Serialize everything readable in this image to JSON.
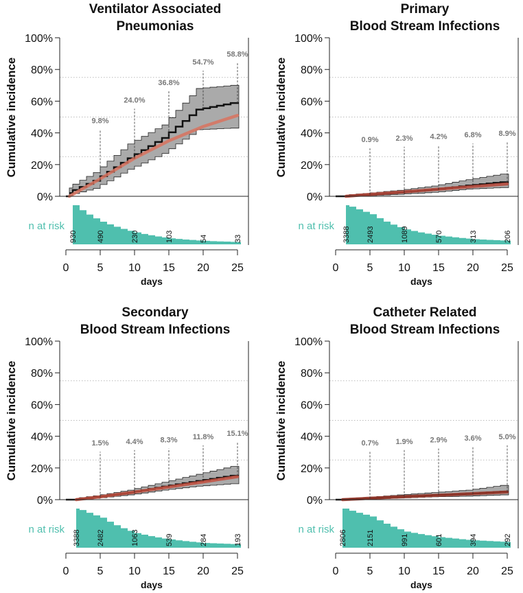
{
  "chart_data": [
    {
      "type": "line",
      "title": [
        "Ventilator Associated",
        "Pneumonias"
      ],
      "ylabel": "Cumulative incidence",
      "xlabel": "days",
      "ylim": [
        0,
        100
      ],
      "xlim": [
        0,
        25
      ],
      "yticks": [
        "0%",
        "20%",
        "40%",
        "60%",
        "80%",
        "100%"
      ],
      "xticks": [
        "0",
        "5",
        "10",
        "15",
        "20",
        "25"
      ],
      "risk_label": "n at risk",
      "marked_days": [
        5,
        10,
        15,
        20,
        25
      ],
      "marked_labels": [
        "9.8%",
        "24.0%",
        "36.8%",
        "54.7%",
        "58.8%"
      ],
      "risk_days": [
        1,
        5,
        10,
        15,
        20,
        25
      ],
      "n_at_risk": [
        "930",
        "490",
        "230",
        "103",
        "54",
        "33"
      ],
      "curve_days": [
        0.5,
        5,
        10,
        15,
        20,
        25
      ],
      "estimate": [
        1,
        9.8,
        24.0,
        36.8,
        54.7,
        58.8
      ],
      "ci_lower": [
        0,
        5,
        17,
        27,
        42,
        43
      ],
      "ci_upper": [
        4,
        15,
        33,
        45,
        68,
        70
      ],
      "fit": [
        0,
        11,
        24,
        35,
        44,
        51
      ],
      "fit_color": "#d9735f"
    },
    {
      "type": "line",
      "title": [
        "Primary",
        "Blood Stream Infections"
      ],
      "ylabel": "Cumulative incidence",
      "xlabel": "days",
      "ylim": [
        0,
        100
      ],
      "xlim": [
        0,
        25
      ],
      "yticks": [
        "0%",
        "20%",
        "40%",
        "60%",
        "80%",
        "100%"
      ],
      "xticks": [
        "0",
        "5",
        "10",
        "15",
        "20",
        "25"
      ],
      "risk_label": "n at risk",
      "marked_days": [
        5,
        10,
        15,
        20,
        25
      ],
      "marked_labels": [
        "0.9%",
        "2.3%",
        "4.2%",
        "6.8%",
        "8.9%"
      ],
      "risk_days": [
        1.5,
        5,
        10,
        15,
        20,
        25
      ],
      "n_at_risk": [
        "3388",
        "2493",
        "1089",
        "570",
        "313",
        "206"
      ],
      "curve_days": [
        1.5,
        5,
        10,
        15,
        20,
        25
      ],
      "estimate": [
        0,
        0.9,
        2.3,
        4.2,
        6.8,
        8.9
      ],
      "ci_lower": [
        0,
        0.3,
        1.2,
        2.5,
        4.5,
        5.5
      ],
      "ci_upper": [
        0.5,
        1.8,
        3.8,
        6.5,
        10.5,
        14
      ],
      "fit": [
        0,
        1.2,
        2.8,
        4.5,
        6.2,
        7.8
      ],
      "fit_color": "#b9483a"
    },
    {
      "type": "line",
      "title": [
        "Secondary",
        "Blood Stream Infections"
      ],
      "ylabel": "Cumulative incidence",
      "xlabel": "days",
      "ylim": [
        0,
        100
      ],
      "xlim": [
        0,
        25
      ],
      "yticks": [
        "0%",
        "20%",
        "40%",
        "60%",
        "80%",
        "100%"
      ],
      "xticks": [
        "0",
        "5",
        "10",
        "15",
        "20",
        "25"
      ],
      "risk_label": "n at risk",
      "marked_days": [
        5,
        10,
        15,
        20,
        25
      ],
      "marked_labels": [
        "1.5%",
        "4.4%",
        "8.3%",
        "11.8%",
        "15.1%"
      ],
      "risk_days": [
        1.5,
        5,
        10,
        15,
        20,
        25
      ],
      "n_at_risk": [
        "3388",
        "2482",
        "1063",
        "539",
        "284",
        "193"
      ],
      "curve_days": [
        1.5,
        5,
        10,
        15,
        20,
        25
      ],
      "estimate": [
        0,
        1.5,
        4.4,
        8.3,
        11.8,
        15.1
      ],
      "ci_lower": [
        0,
        0.8,
        3.0,
        6.0,
        8.5,
        10
      ],
      "ci_upper": [
        0.5,
        2.4,
        6.0,
        11,
        16,
        21
      ],
      "fit": [
        0,
        1.8,
        4.8,
        8.0,
        11.2,
        14.5
      ],
      "fit_color": "#c4503f"
    },
    {
      "type": "line",
      "title": [
        "Catheter Related",
        "Blood Stream Infections"
      ],
      "ylabel": "Cumulative incidence",
      "xlabel": "days",
      "ylim": [
        0,
        100
      ],
      "xlim": [
        0,
        25
      ],
      "yticks": [
        "0%",
        "20%",
        "40%",
        "60%",
        "80%",
        "100%"
      ],
      "xticks": [
        "0",
        "5",
        "10",
        "15",
        "20",
        "25"
      ],
      "risk_label": "n at risk",
      "marked_days": [
        5,
        10,
        15,
        20,
        25
      ],
      "marked_labels": [
        "0.7%",
        "1.9%",
        "2.9%",
        "3.6%",
        "5.0%"
      ],
      "risk_days": [
        1,
        5,
        10,
        15,
        20,
        25
      ],
      "n_at_risk": [
        "2806",
        "2151",
        "991",
        "601",
        "394",
        "292"
      ],
      "curve_days": [
        1,
        5,
        10,
        15,
        20,
        25
      ],
      "estimate": [
        0,
        0.7,
        1.9,
        2.9,
        3.6,
        5.0
      ],
      "ci_lower": [
        0,
        0.3,
        1.0,
        1.8,
        2.2,
        3.0
      ],
      "ci_upper": [
        0.4,
        1.3,
        3.0,
        4.5,
        6.0,
        9.0
      ],
      "fit": [
        0,
        0.9,
        1.9,
        2.8,
        3.8,
        4.8
      ],
      "fit_color": "#a0392b"
    }
  ],
  "colors": {
    "risk": "#4fbfae",
    "band": "#aaaaaa",
    "estimate": "#111111",
    "annotation": "#777777"
  }
}
